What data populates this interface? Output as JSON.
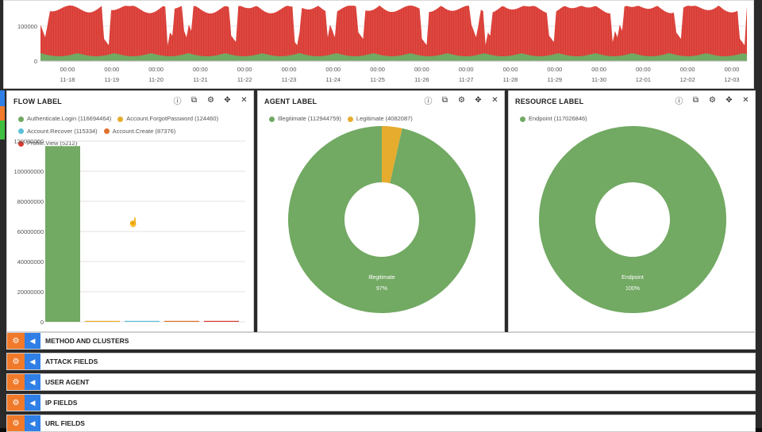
{
  "colors": {
    "green": "#72a963",
    "red": "#d93a32",
    "orange": "#e6ac2e",
    "blue": "#5bc0d6",
    "darkorange": "#e0712c",
    "accent_gear": "#f07a2a",
    "accent_toggle": "#2f7fe6"
  },
  "timeline": {
    "y_ticks": [
      "100000",
      "0"
    ],
    "x_ticks": [
      {
        "time": "00:00",
        "date": "11-18"
      },
      {
        "time": "00:00",
        "date": "11-19"
      },
      {
        "time": "00:00",
        "date": "11-20"
      },
      {
        "time": "00:00",
        "date": "11-21"
      },
      {
        "time": "00:00",
        "date": "11-22"
      },
      {
        "time": "00:00",
        "date": "11-23"
      },
      {
        "time": "00:00",
        "date": "11-24"
      },
      {
        "time": "00:00",
        "date": "11-25"
      },
      {
        "time": "00:00",
        "date": "11-26"
      },
      {
        "time": "00:00",
        "date": "11-27"
      },
      {
        "time": "00:00",
        "date": "11-28"
      },
      {
        "time": "00:00",
        "date": "11-29"
      },
      {
        "time": "00:00",
        "date": "11-30"
      },
      {
        "time": "00:00",
        "date": "12-01"
      },
      {
        "time": "00:00",
        "date": "12-02"
      },
      {
        "time": "00:00",
        "date": "12-03"
      }
    ]
  },
  "panels": {
    "flow": {
      "title": "FLOW LABEL",
      "legend": [
        {
          "label": "Authenticate.Login (116694464)",
          "color": "#72a963"
        },
        {
          "label": "Account.ForgotPassword (124460)",
          "color": "#e6ac2e"
        },
        {
          "label": "Account.Recover (115334)",
          "color": "#5bc0d6"
        },
        {
          "label": "Account.Create (87376)",
          "color": "#e0712c"
        },
        {
          "label": "Profile.View (5212)",
          "color": "#d93a32"
        }
      ]
    },
    "agent": {
      "title": "AGENT LABEL",
      "legend": [
        {
          "label": "Illegitimate (112944759)",
          "color": "#72a963"
        },
        {
          "label": "Legitimate (4082087)",
          "color": "#e6ac2e"
        }
      ],
      "center_label": "Illegitimate",
      "center_pct": "97%"
    },
    "resource": {
      "title": "RESOURCE LABEL",
      "legend": [
        {
          "label": "Endpoint (117026846)",
          "color": "#72a963"
        }
      ],
      "center_label": "Endpoint",
      "center_pct": "100%"
    }
  },
  "sections": [
    {
      "label": "METHOD AND CLUSTERS"
    },
    {
      "label": "ATTACK FIELDS"
    },
    {
      "label": "USER AGENT"
    },
    {
      "label": "IP FIELDS"
    },
    {
      "label": "URL FIELDS"
    }
  ],
  "chart_data": [
    {
      "type": "bar",
      "title": "",
      "categories": [
        "Authenticate.Login",
        "Account.ForgotPassword",
        "Account.Recover",
        "Account.Create",
        "Profile.View"
      ],
      "values": [
        116694464,
        124460,
        115334,
        87376,
        5212
      ],
      "colors": [
        "#72a963",
        "#e6ac2e",
        "#5bc0d6",
        "#e0712c",
        "#d93a32"
      ],
      "ylim": [
        0,
        120000000
      ],
      "yticks": [
        "120000000",
        "100000000",
        "80000000",
        "60000000",
        "40000000",
        "20000000",
        "0"
      ],
      "grid": true
    },
    {
      "type": "pie",
      "title": "",
      "labels": [
        "Illegitimate",
        "Legitimate"
      ],
      "values": [
        112944759,
        4082087
      ],
      "colors": [
        "#72a963",
        "#e6ac2e"
      ]
    },
    {
      "type": "pie",
      "title": "",
      "labels": [
        "Endpoint"
      ],
      "values": [
        117026846
      ],
      "colors": [
        "#72a963"
      ]
    }
  ]
}
